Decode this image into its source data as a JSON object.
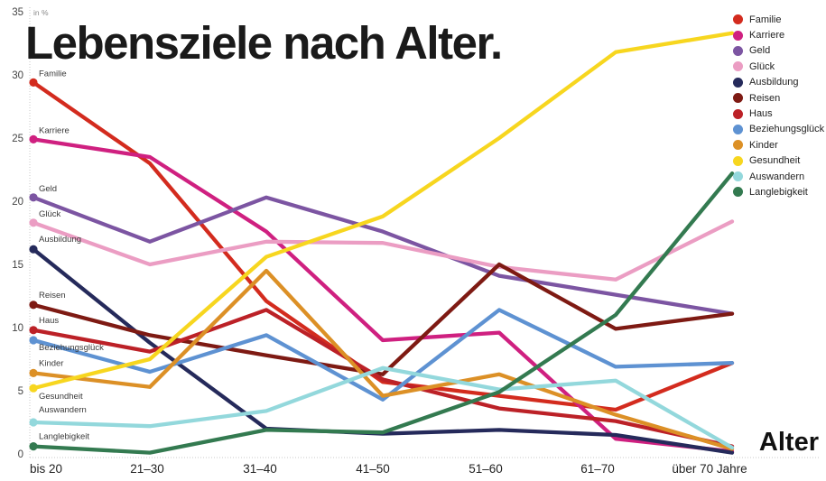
{
  "chart_data": {
    "type": "line",
    "title": "Lebensziele nach Alter.",
    "unit_label": "in %",
    "xlabel": "Alter",
    "categories": [
      "bis 20",
      "21–30",
      "31–40",
      "41–50",
      "51–60",
      "61–70",
      "über 70 Jahre"
    ],
    "ylim": [
      0,
      35
    ],
    "yticks": [
      0,
      5,
      10,
      15,
      20,
      25,
      30,
      35
    ],
    "grid": "dotted-axes-only",
    "legend_position": "top-right",
    "series": [
      {
        "name": "Familie",
        "color": "#d32b1e",
        "values": [
          29.4,
          23.0,
          12.1,
          5.7,
          4.6,
          3.5,
          7.2
        ]
      },
      {
        "name": "Karriere",
        "color": "#cf2080",
        "values": [
          24.9,
          23.5,
          17.6,
          9.0,
          9.6,
          1.2,
          0.2
        ]
      },
      {
        "name": "Geld",
        "color": "#7c55a2",
        "values": [
          20.3,
          16.8,
          20.3,
          17.6,
          14.1,
          12.6,
          11.1
        ]
      },
      {
        "name": "Glück",
        "color": "#eb9dc3",
        "values": [
          18.3,
          15.0,
          16.8,
          16.7,
          14.8,
          13.8,
          18.4
        ]
      },
      {
        "name": "Ausbildung",
        "color": "#252a5b",
        "values": [
          16.2,
          8.8,
          2.0,
          1.6,
          1.9,
          1.5,
          0.1
        ]
      },
      {
        "name": "Reisen",
        "color": "#7e1a13",
        "values": [
          11.8,
          9.4,
          7.8,
          6.3,
          15.0,
          9.9,
          11.1
        ]
      },
      {
        "name": "Haus",
        "color": "#bc2127",
        "values": [
          9.8,
          8.1,
          11.4,
          5.9,
          3.6,
          2.6,
          0.6
        ]
      },
      {
        "name": "Beziehungsglück",
        "color": "#5e92d2",
        "values": [
          9.0,
          6.5,
          9.4,
          4.3,
          11.4,
          6.9,
          7.2
        ]
      },
      {
        "name": "Kinder",
        "color": "#dc9026",
        "values": [
          6.4,
          5.3,
          14.5,
          4.6,
          6.3,
          3.1,
          0.4
        ]
      },
      {
        "name": "Gesundheit",
        "color": "#f7d61f",
        "values": [
          5.2,
          7.5,
          15.6,
          18.8,
          25.0,
          31.8,
          33.3
        ]
      },
      {
        "name": "Auswandern",
        "color": "#93d8dc",
        "values": [
          2.5,
          2.2,
          3.4,
          6.8,
          5.1,
          5.8,
          0.5
        ]
      },
      {
        "name": "Langlebigkeit",
        "color": "#337a50",
        "values": [
          0.6,
          0.1,
          1.9,
          1.7,
          4.9,
          11.0,
          22.2
        ]
      }
    ]
  }
}
